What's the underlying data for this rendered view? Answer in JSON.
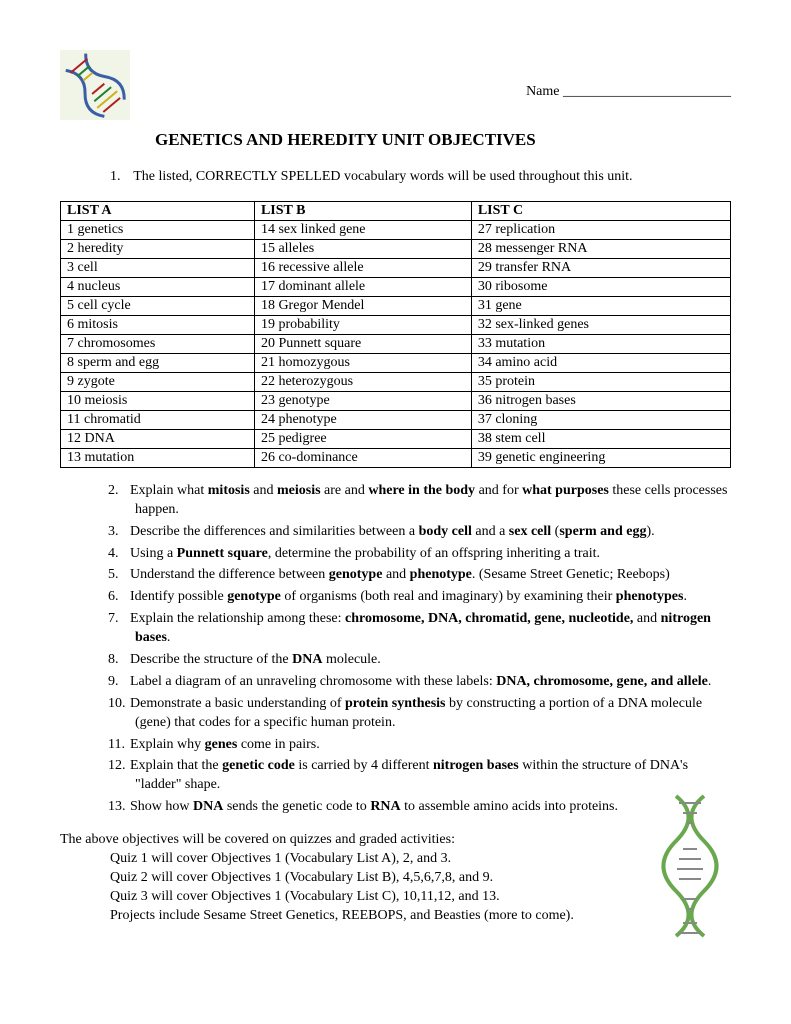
{
  "header": {
    "name_label": "Name ________________________",
    "title": "GENETICS AND HEREDITY UNIT OBJECTIVES"
  },
  "intro_number": "1.",
  "intro_text": "The listed, CORRECTLY SPELLED vocabulary words will be used throughout this unit.",
  "vocab": {
    "headerA": "LIST A",
    "headerB": "LIST B",
    "headerC": "LIST C",
    "rows": [
      {
        "a": "1  genetics",
        "b": "14 sex linked gene",
        "c": "27 replication"
      },
      {
        "a": "2  heredity",
        "b": "15 alleles",
        "c": "28 messenger RNA"
      },
      {
        "a": "3  cell",
        "b": "16 recessive allele",
        "c": "29 transfer RNA"
      },
      {
        "a": "4  nucleus",
        "b": "17 dominant allele",
        "c": "30 ribosome"
      },
      {
        "a": "5  cell cycle",
        "b": "18 Gregor Mendel",
        "c": "31 gene"
      },
      {
        "a": "6  mitosis",
        "b": "19 probability",
        "c": "32 sex-linked genes"
      },
      {
        "a": "7  chromosomes",
        "b": "20 Punnett square",
        "c": "33 mutation"
      },
      {
        "a": "8  sperm and egg",
        "b": "21 homozygous",
        "c": "34 amino acid"
      },
      {
        "a": "9  zygote",
        "b": "22 heterozygous",
        "c": "35 protein"
      },
      {
        "a": "10 meiosis",
        "b": "23 genotype",
        "c": "36 nitrogen bases"
      },
      {
        "a": "11 chromatid",
        "b": "24 phenotype",
        "c": "37 cloning"
      },
      {
        "a": "12 DNA",
        "b": "25 pedigree",
        "c": "38 stem cell"
      },
      {
        "a": "13 mutation",
        "b": "26 co-dominance",
        "c": "39 genetic engineering"
      }
    ]
  },
  "objectives": [
    {
      "n": "2.",
      "html": "Explain what <b>mitosis</b> and <b>meiosis</b> are and <b>where in the body</b> and for <b>what purposes</b> these cells processes happen."
    },
    {
      "n": "3.",
      "html": "Describe the differences and similarities between a <b>body cell</b> and a <b>sex cell</b> (<b>sperm and egg</b>)."
    },
    {
      "n": "4.",
      "html": "Using a <b>Punnett square</b>, determine the probability of an offspring inheriting a trait."
    },
    {
      "n": "5.",
      "html": "Understand the difference between <b>genotype</b> and <b>phenotype</b>. (Sesame Street Genetic; Reebops)"
    },
    {
      "n": "6.",
      "html": "Identify possible <b>genotype</b> of organisms (both real and imaginary) by examining their <b>phenotypes</b>."
    },
    {
      "n": "7.",
      "html": "Explain the relationship among these: <b>chromosome, DNA, chromatid, gene, nucleotide,</b> and <b>nitrogen bases</b>."
    },
    {
      "n": "8.",
      "html": "Describe the structure of the <b>DNA</b> molecule."
    },
    {
      "n": "9.",
      "html": "Label a diagram of an unraveling chromosome with these labels: <b>DNA, chromosome, gene, and allele</b>."
    },
    {
      "n": "10.",
      "html": "Demonstrate a basic understanding of <b>protein synthesis</b> by constructing a portion of a DNA molecule (gene) that codes for a specific human protein."
    },
    {
      "n": "11.",
      "html": "Explain why <b>genes</b> come in pairs."
    },
    {
      "n": "12.",
      "html": "Explain that the <b>genetic code</b> is carried by 4 different <b>nitrogen bases</b> within the structure of DNA's \"ladder\" shape."
    },
    {
      "n": "13.",
      "html": "Show how <b>DNA</b> sends the genetic code to <b>RNA</b> to assemble amino acids into proteins."
    }
  ],
  "quiz": {
    "intro": "The above objectives will be covered on quizzes and graded activities:",
    "lines": [
      "Quiz 1 will cover Objectives 1 (Vocabulary List A), 2, and 3.",
      "Quiz 2 will cover Objectives 1 (Vocabulary List B), 4,5,6,7,8, and 9.",
      "Quiz 3 will cover Objectives 1 (Vocabulary List C), 10,11,12, and 13.",
      "Projects include Sesame Street Genetics, REEBOPS, and Beasties (more to come)."
    ]
  }
}
